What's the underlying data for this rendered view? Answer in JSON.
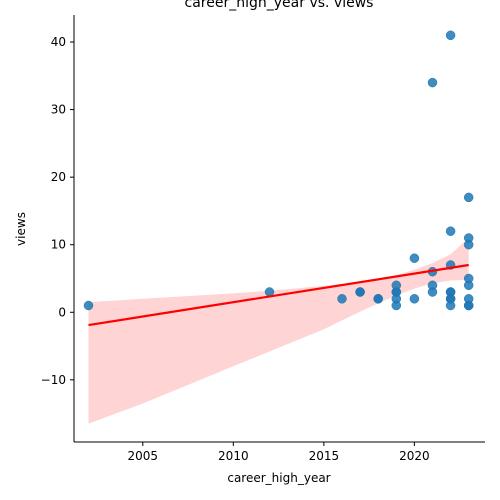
{
  "chart_data": {
    "type": "scatter",
    "title": "career_high_year vs. views",
    "xlabel": "career_high_year",
    "ylabel": "views",
    "xlim": [
      2001.2,
      2023.9
    ],
    "ylim": [
      -19.2,
      44.0
    ],
    "xticks": [
      2005,
      2010,
      2015,
      2020
    ],
    "yticks": [
      -10,
      0,
      10,
      20,
      30,
      40
    ],
    "xtick_labels": [
      "2005",
      "2010",
      "2015",
      "2020"
    ],
    "ytick_labels": [
      "−10",
      "0",
      "10",
      "20",
      "30",
      "40"
    ],
    "grid": false,
    "point_color": "#1f77b4",
    "fit_color": "#ff0000",
    "band_color": "#ffcccc",
    "points": [
      [
        2002,
        1
      ],
      [
        2012,
        3
      ],
      [
        2016,
        2
      ],
      [
        2017,
        3
      ],
      [
        2017,
        3
      ],
      [
        2018,
        2
      ],
      [
        2018,
        2
      ],
      [
        2019,
        1
      ],
      [
        2019,
        2
      ],
      [
        2019,
        3
      ],
      [
        2019,
        3
      ],
      [
        2019,
        4
      ],
      [
        2020,
        2
      ],
      [
        2020,
        8
      ],
      [
        2021,
        3
      ],
      [
        2021,
        4
      ],
      [
        2021,
        6
      ],
      [
        2021,
        34
      ],
      [
        2022,
        1
      ],
      [
        2022,
        2
      ],
      [
        2022,
        2
      ],
      [
        2022,
        3
      ],
      [
        2022,
        3
      ],
      [
        2022,
        7
      ],
      [
        2022,
        12
      ],
      [
        2022,
        41
      ],
      [
        2023,
        1
      ],
      [
        2023,
        1
      ],
      [
        2023,
        2
      ],
      [
        2023,
        4
      ],
      [
        2023,
        5
      ],
      [
        2023,
        10
      ],
      [
        2023,
        11
      ],
      [
        2023,
        17
      ]
    ],
    "regression": {
      "x": [
        2002,
        2023
      ],
      "y": [
        -1.9,
        7.0
      ]
    },
    "confidence_band": {
      "x": [
        2002,
        2005,
        2010,
        2012,
        2015,
        2017,
        2019,
        2020,
        2021,
        2022,
        2023
      ],
      "upper": [
        1.5,
        2.0,
        2.8,
        3.2,
        3.9,
        4.5,
        5.5,
        6.3,
        7.3,
        8.6,
        11.0
      ],
      "lower": [
        -16.5,
        -13.5,
        -8.0,
        -5.8,
        -2.5,
        0.1,
        2.5,
        3.5,
        4.3,
        4.7,
        4.8
      ]
    }
  }
}
